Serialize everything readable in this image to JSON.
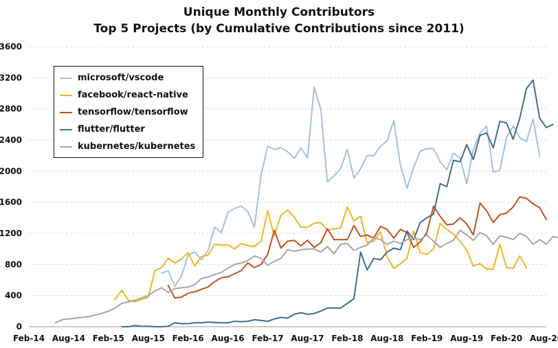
{
  "chart_data": {
    "type": "line",
    "title": "Unique Monthly Contributors",
    "subtitle": "Top 5 Projects (by Cumulative Contributions since 2011)",
    "xlabel": "",
    "ylabel": "",
    "ylim": [
      0,
      3600
    ],
    "yticks": [
      0,
      400,
      800,
      1200,
      1600,
      2000,
      2400,
      2800,
      3200,
      3600
    ],
    "xlim": [
      "2014-02",
      "2020-08"
    ],
    "xticks": [
      "Feb-14",
      "Aug-14",
      "Feb-15",
      "Aug-15",
      "Feb-16",
      "Aug-16",
      "Feb-17",
      "Aug-17",
      "Feb-18",
      "Aug-18",
      "Feb-19",
      "Aug-19",
      "Feb-20",
      "Aug-20"
    ],
    "grid": true,
    "legend_position": "top-left",
    "series": [
      {
        "name": "microsoft/vscode",
        "color": "#a5c1d9",
        "start": "2015-10",
        "values": [
          690,
          720,
          520,
          650,
          920,
          960,
          860,
          980,
          1280,
          1210,
          1470,
          1520,
          1550,
          1480,
          1280,
          1950,
          2320,
          2280,
          2300,
          2250,
          2160,
          2300,
          2170,
          3080,
          2800,
          1860,
          1940,
          2030,
          2280,
          1910,
          2030,
          2200,
          2200,
          2320,
          2390,
          2650,
          2080,
          1780,
          2050,
          2260,
          2290,
          2290,
          2120,
          2020,
          2230,
          2170,
          1840,
          2280,
          2490,
          2580,
          1990,
          2010,
          2430,
          2580,
          2430,
          2380,
          2670,
          2190
        ]
      },
      {
        "name": "facebook/react-native",
        "color": "#f0b323",
        "start": "2015-03",
        "values": [
          350,
          470,
          340,
          320,
          350,
          380,
          720,
          760,
          880,
          820,
          870,
          950,
          780,
          900,
          920,
          1060,
          1050,
          1050,
          1000,
          1070,
          1040,
          1030,
          1100,
          1490,
          1170,
          1430,
          1500,
          1410,
          1280,
          1280,
          1330,
          1340,
          1240,
          1260,
          1270,
          1540,
          1360,
          1420,
          1080,
          1100,
          1220,
          900,
          750,
          810,
          880,
          1230,
          950,
          930,
          1000,
          1330,
          1250,
          1190,
          1100,
          980,
          780,
          810,
          740,
          740,
          1060,
          760,
          750,
          910,
          760
        ]
      },
      {
        "name": "tensorflow/tensorflow",
        "color": "#c0531f",
        "start": "2015-11",
        "values": [
          530,
          370,
          380,
          430,
          450,
          480,
          510,
          580,
          630,
          640,
          680,
          720,
          820,
          760,
          800,
          930,
          1240,
          1010,
          1100,
          1110,
          1040,
          1110,
          1020,
          1080,
          1260,
          1120,
          1120,
          1120,
          1300,
          1160,
          1180,
          1140,
          1290,
          1250,
          1140,
          1250,
          1210,
          1020,
          1090,
          1210,
          1550,
          1420,
          1310,
          1320,
          1400,
          1320,
          1180,
          1590,
          1490,
          1340,
          1440,
          1460,
          1540,
          1670,
          1650,
          1580,
          1530,
          1380
        ]
      },
      {
        "name": "flutter/flutter",
        "color": "#3e6d8e",
        "start": "2015-04",
        "values": [
          0,
          0,
          15,
          5,
          5,
          0,
          0,
          5,
          50,
          40,
          40,
          50,
          50,
          60,
          55,
          50,
          50,
          70,
          65,
          70,
          90,
          80,
          70,
          100,
          120,
          110,
          160,
          180,
          160,
          170,
          200,
          240,
          240,
          240,
          300,
          360,
          960,
          730,
          880,
          860,
          960,
          1010,
          990,
          1230,
          1120,
          1340,
          1400,
          1450,
          1840,
          1800,
          2140,
          2120,
          2340,
          2150,
          2460,
          2490,
          2300,
          2640,
          2620,
          2410,
          2680,
          3060,
          3170,
          2680,
          2560,
          2600
        ]
      },
      {
        "name": "kubernetes/kubernetes",
        "color": "#a6a6a6",
        "start": "2014-06",
        "values": [
          50,
          90,
          100,
          110,
          120,
          130,
          150,
          170,
          200,
          240,
          300,
          320,
          340,
          370,
          400,
          460,
          500,
          440,
          490,
          500,
          510,
          540,
          620,
          640,
          670,
          700,
          750,
          800,
          820,
          850,
          910,
          880,
          790,
          840,
          880,
          990,
          970,
          990,
          1000,
          1000,
          960,
          1030,
          940,
          1060,
          1070,
          980,
          1020,
          1050,
          1140,
          1120,
          1060,
          1100,
          1070,
          1120,
          1140,
          1120,
          1180,
          1100,
          1020,
          1070,
          1110,
          1240,
          1180,
          1110,
          1210,
          1170,
          1060,
          1170,
          1150,
          1120,
          1200,
          1160,
          1060,
          1120,
          1060,
          1160,
          1140,
          1140,
          1240,
          1160,
          1020
        ]
      }
    ]
  }
}
